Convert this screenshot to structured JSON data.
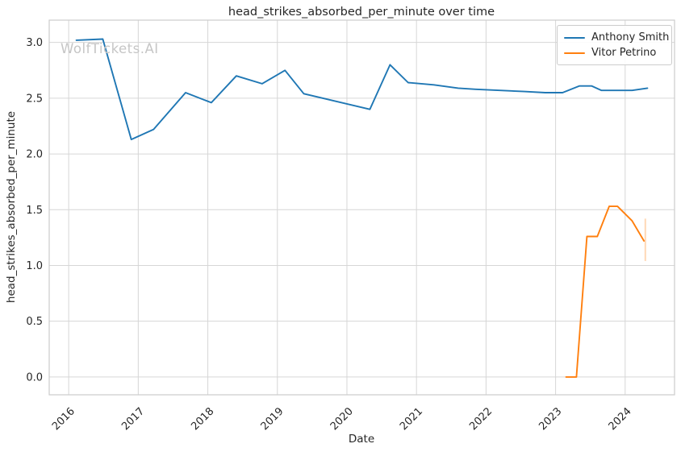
{
  "figure": {
    "watermark": "WolfTickets.AI"
  },
  "chart_data": {
    "type": "line",
    "title": "head_strikes_absorbed_per_minute over time",
    "xlabel": "Date",
    "ylabel": "head_strikes_absorbed_per_minute",
    "xlim": [
      2015.72,
      2024.71
    ],
    "ylim": [
      -0.16,
      3.2
    ],
    "grid": true,
    "legend_position": "upper right",
    "x_ticks": {
      "values": [
        2016,
        2017,
        2018,
        2019,
        2020,
        2021,
        2022,
        2023,
        2024
      ],
      "labels": [
        "2016",
        "2017",
        "2018",
        "2019",
        "2020",
        "2021",
        "2022",
        "2023",
        "2024"
      ]
    },
    "y_ticks": {
      "values": [
        0.0,
        0.5,
        1.0,
        1.5,
        2.0,
        2.5,
        3.0
      ],
      "labels": [
        "0.0",
        "0.5",
        "1.0",
        "1.5",
        "2.0",
        "2.5",
        "3.0"
      ]
    },
    "series": [
      {
        "name": "Anthony Smith",
        "color": "#1f77b4",
        "x": [
          2016.11,
          2016.49,
          2016.9,
          2017.22,
          2017.68,
          2018.05,
          2018.41,
          2018.78,
          2019.11,
          2019.38,
          2020.33,
          2020.62,
          2020.88,
          2021.25,
          2021.6,
          2021.85,
          2022.2,
          2022.55,
          2022.85,
          2023.1,
          2023.34,
          2023.52,
          2023.66,
          2024.1,
          2024.32
        ],
        "y": [
          3.02,
          3.03,
          2.13,
          2.22,
          2.55,
          2.46,
          2.7,
          2.63,
          2.75,
          2.54,
          2.4,
          2.8,
          2.64,
          2.62,
          2.59,
          2.58,
          2.57,
          2.56,
          2.55,
          2.55,
          2.61,
          2.61,
          2.57,
          2.57,
          2.59
        ]
      },
      {
        "name": "Vitor Petrino",
        "color": "#ff7f0e",
        "x": [
          2023.15,
          2023.3,
          2023.45,
          2023.6,
          2023.77,
          2023.89,
          2024.1,
          2024.27
        ],
        "y": [
          0.0,
          0.0,
          1.26,
          1.26,
          1.53,
          1.53,
          1.4,
          1.22
        ]
      }
    ],
    "error_bar": {
      "series": "Vitor Petrino",
      "x": 2024.29,
      "y_low": 1.04,
      "y_high": 1.42
    },
    "style": {
      "grid_color": "#d6d6d6",
      "spine_color": "#cccccc",
      "text_color": "#262626",
      "watermark_color": "#c6c6c6",
      "background": "#ffffff"
    }
  }
}
